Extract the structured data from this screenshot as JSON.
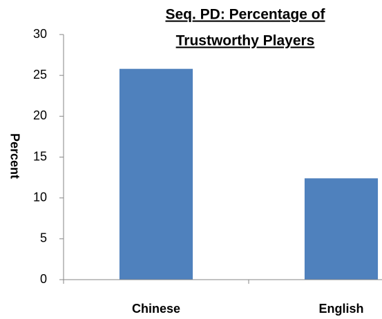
{
  "chart_data": {
    "type": "bar",
    "title": [
      "Seq. PD: Percentage of",
      "Trustworthy Players"
    ],
    "y_label": "Percent",
    "categories": [
      "Chinese",
      "English"
    ],
    "values": [
      25.8,
      12.4
    ],
    "color": "#4f81bd",
    "ylim": [
      0,
      30
    ],
    "yticks": [
      0,
      5,
      10,
      15,
      20,
      25,
      30
    ],
    "grid": false
  }
}
